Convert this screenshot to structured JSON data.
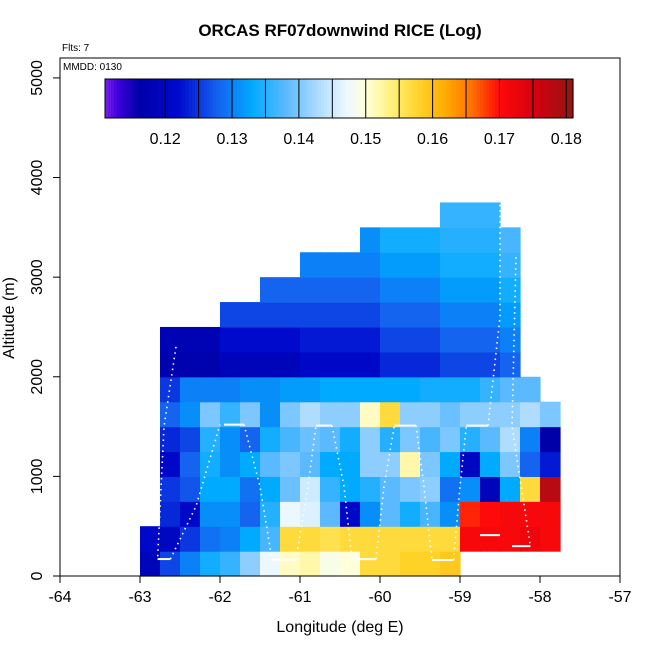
{
  "chart_data": {
    "type": "heatmap",
    "title": "ORCAS RF07downwind RICE (Log)",
    "flights_label": "Flts: 7",
    "date_label": "MMDD: 0130",
    "xlabel": "Longitude (deg E)",
    "ylabel": "Altitude (m)",
    "xlim": [
      -64,
      -57
    ],
    "ylim": [
      0,
      5200
    ],
    "x_ticks": [
      -64,
      -63,
      -62,
      -61,
      -60,
      -59,
      -58,
      -57
    ],
    "x_tick_labels": [
      "-64",
      "-63",
      "-62",
      "-61",
      "-60",
      "-59",
      "-58",
      "-57"
    ],
    "y_ticks": [
      0,
      1000,
      2000,
      3000,
      4000,
      5000
    ],
    "y_tick_labels": [
      "0",
      "1000",
      "2000",
      "3000",
      "4000",
      "5000"
    ],
    "colorbar": {
      "min": 0.111,
      "max": 0.181,
      "ticks": [
        0.12,
        0.13,
        0.14,
        0.15,
        0.16,
        0.17,
        0.18
      ],
      "tick_labels": [
        "0.12",
        "0.13",
        "0.14",
        "0.15",
        "0.16",
        "0.17",
        "0.18"
      ]
    },
    "cell_width_deg": 0.25,
    "cell_height_m": 250,
    "cells": [
      [
        -63.0,
        0,
        0.119
      ],
      [
        -62.75,
        0,
        0.126
      ],
      [
        -62.5,
        0,
        0.13
      ],
      [
        -62.25,
        0,
        0.134
      ],
      [
        -62.0,
        0,
        0.136
      ],
      [
        -61.75,
        0,
        0.141
      ],
      [
        -61.5,
        0,
        0.147
      ],
      [
        -61.25,
        0,
        0.151
      ],
      [
        -61.0,
        0,
        0.152
      ],
      [
        -60.75,
        0,
        0.149
      ],
      [
        -60.5,
        0,
        0.15
      ],
      [
        -60.25,
        0,
        0.157
      ],
      [
        -60.0,
        0,
        0.157
      ],
      [
        -59.75,
        0,
        0.158
      ],
      [
        -59.5,
        0,
        0.158
      ],
      [
        -59.25,
        0,
        0.159
      ],
      [
        -63.0,
        250,
        0.121
      ],
      [
        -62.75,
        250,
        0.12
      ],
      [
        -62.5,
        250,
        0.125
      ],
      [
        -62.25,
        250,
        0.129
      ],
      [
        -62.0,
        250,
        0.13
      ],
      [
        -61.75,
        250,
        0.133
      ],
      [
        -61.5,
        250,
        0.137
      ],
      [
        -61.25,
        250,
        0.157
      ],
      [
        -61.0,
        250,
        0.157
      ],
      [
        -60.75,
        250,
        0.156
      ],
      [
        -60.5,
        250,
        0.157
      ],
      [
        -60.25,
        250,
        0.157
      ],
      [
        -60.0,
        250,
        0.157
      ],
      [
        -59.75,
        250,
        0.157
      ],
      [
        -59.5,
        250,
        0.157
      ],
      [
        -59.25,
        250,
        0.157
      ],
      [
        -59.0,
        250,
        0.171
      ],
      [
        -58.75,
        250,
        0.171
      ],
      [
        -58.5,
        250,
        0.171
      ],
      [
        -58.25,
        250,
        0.172
      ],
      [
        -58.0,
        250,
        0.171
      ],
      [
        -62.75,
        500,
        0.124
      ],
      [
        -62.5,
        500,
        0.121
      ],
      [
        -62.25,
        500,
        0.131
      ],
      [
        -62.0,
        500,
        0.131
      ],
      [
        -61.75,
        500,
        0.128
      ],
      [
        -61.5,
        500,
        0.135
      ],
      [
        -61.25,
        500,
        0.147
      ],
      [
        -61.0,
        500,
        0.146
      ],
      [
        -60.75,
        500,
        0.138
      ],
      [
        -60.5,
        500,
        0.121
      ],
      [
        -60.25,
        500,
        0.131
      ],
      [
        -60.0,
        500,
        0.138
      ],
      [
        -59.75,
        500,
        0.134
      ],
      [
        -59.5,
        500,
        0.137
      ],
      [
        -59.25,
        500,
        0.131
      ],
      [
        -59.0,
        500,
        0.169
      ],
      [
        -58.75,
        500,
        0.17
      ],
      [
        -58.5,
        500,
        0.171
      ],
      [
        -58.25,
        500,
        0.171
      ],
      [
        -58.0,
        500,
        0.171
      ],
      [
        -62.75,
        750,
        0.125
      ],
      [
        -62.5,
        750,
        0.127
      ],
      [
        -62.25,
        750,
        0.133
      ],
      [
        -62.0,
        750,
        0.133
      ],
      [
        -61.75,
        750,
        0.129
      ],
      [
        -61.5,
        750,
        0.133
      ],
      [
        -61.25,
        750,
        0.139
      ],
      [
        -61.0,
        750,
        0.145
      ],
      [
        -60.75,
        750,
        0.136
      ],
      [
        -60.5,
        750,
        0.133
      ],
      [
        -60.25,
        750,
        0.135
      ],
      [
        -60.0,
        750,
        0.138
      ],
      [
        -59.75,
        750,
        0.14
      ],
      [
        -59.5,
        750,
        0.141
      ],
      [
        -59.25,
        750,
        0.129
      ],
      [
        -59.0,
        750,
        0.131
      ],
      [
        -58.75,
        750,
        0.119
      ],
      [
        -58.5,
        750,
        0.133
      ],
      [
        -58.25,
        750,
        0.157
      ],
      [
        -58.0,
        750,
        0.178
      ],
      [
        -62.75,
        1000,
        0.121
      ],
      [
        -62.5,
        1000,
        0.128
      ],
      [
        -62.25,
        1000,
        0.134
      ],
      [
        -62.0,
        1000,
        0.131
      ],
      [
        -61.75,
        1000,
        0.133
      ],
      [
        -61.5,
        1000,
        0.138
      ],
      [
        -61.25,
        1000,
        0.14
      ],
      [
        -61.0,
        1000,
        0.138
      ],
      [
        -60.75,
        1000,
        0.133
      ],
      [
        -60.5,
        1000,
        0.133
      ],
      [
        -60.25,
        1000,
        0.141
      ],
      [
        -60.0,
        1000,
        0.141
      ],
      [
        -59.75,
        1000,
        0.152
      ],
      [
        -59.5,
        1000,
        0.14
      ],
      [
        -59.25,
        1000,
        0.133
      ],
      [
        -59.0,
        1000,
        0.12
      ],
      [
        -58.75,
        1000,
        0.133
      ],
      [
        -58.5,
        1000,
        0.14
      ],
      [
        -58.25,
        1000,
        0.128
      ],
      [
        -58.0,
        1000,
        0.123
      ],
      [
        -62.75,
        1250,
        0.124
      ],
      [
        -62.5,
        1250,
        0.126
      ],
      [
        -62.25,
        1250,
        0.135
      ],
      [
        -62.0,
        1250,
        0.131
      ],
      [
        -61.75,
        1250,
        0.128
      ],
      [
        -61.5,
        1250,
        0.134
      ],
      [
        -61.25,
        1250,
        0.137
      ],
      [
        -61.0,
        1250,
        0.139
      ],
      [
        -60.75,
        1250,
        0.138
      ],
      [
        -60.5,
        1250,
        0.134
      ],
      [
        -60.25,
        1250,
        0.141
      ],
      [
        -60.0,
        1250,
        0.135
      ],
      [
        -59.75,
        1250,
        0.14
      ],
      [
        -59.5,
        1250,
        0.137
      ],
      [
        -59.25,
        1250,
        0.14
      ],
      [
        -59.0,
        1250,
        0.135
      ],
      [
        -58.75,
        1250,
        0.138
      ],
      [
        -58.5,
        1250,
        0.143
      ],
      [
        -58.25,
        1250,
        0.13
      ],
      [
        -58.0,
        1250,
        0.116
      ],
      [
        -62.75,
        1500,
        0.128
      ],
      [
        -62.5,
        1500,
        0.131
      ],
      [
        -62.25,
        1500,
        0.14
      ],
      [
        -62.0,
        1500,
        0.136
      ],
      [
        -61.75,
        1500,
        0.14
      ],
      [
        -61.5,
        1500,
        0.131
      ],
      [
        -61.25,
        1500,
        0.14
      ],
      [
        -61.0,
        1500,
        0.143
      ],
      [
        -60.75,
        1500,
        0.141
      ],
      [
        -60.5,
        1500,
        0.141
      ],
      [
        -60.25,
        1500,
        0.151
      ],
      [
        -60.0,
        1500,
        0.157
      ],
      [
        -59.75,
        1500,
        0.141
      ],
      [
        -59.5,
        1500,
        0.141
      ],
      [
        -59.25,
        1500,
        0.139
      ],
      [
        -59.0,
        1500,
        0.141
      ],
      [
        -58.75,
        1500,
        0.141
      ],
      [
        -58.5,
        1500,
        0.141
      ],
      [
        -58.25,
        1500,
        0.143
      ],
      [
        -58.0,
        1500,
        0.14
      ],
      [
        -62.75,
        1750,
        0.125
      ],
      [
        -62.5,
        1750,
        0.13
      ],
      [
        -62.25,
        1750,
        0.13
      ],
      [
        -62.0,
        1750,
        0.13
      ],
      [
        -61.75,
        1750,
        0.131
      ],
      [
        -61.5,
        1750,
        0.131
      ],
      [
        -61.25,
        1750,
        0.132
      ],
      [
        -61.0,
        1750,
        0.132
      ],
      [
        -60.75,
        1750,
        0.133
      ],
      [
        -60.5,
        1750,
        0.133
      ],
      [
        -60.25,
        1750,
        0.133
      ],
      [
        -60.0,
        1750,
        0.133
      ],
      [
        -59.75,
        1750,
        0.133
      ],
      [
        -59.5,
        1750,
        0.134
      ],
      [
        -59.25,
        1750,
        0.134
      ],
      [
        -59.0,
        1750,
        0.134
      ],
      [
        -58.75,
        1750,
        0.136
      ],
      [
        -58.5,
        1750,
        0.138
      ],
      [
        -58.25,
        1750,
        0.138
      ]
    ],
    "upper_cells": [
      {
        "x0": -62.75,
        "x1": -62.5,
        "y1": 2500,
        "pattern": "a"
      },
      {
        "x0": -62.5,
        "x1": -62.25,
        "y1": 2500,
        "pattern": "a"
      },
      {
        "x0": -62.25,
        "x1": -62.0,
        "y1": 2500,
        "pattern": "a"
      },
      {
        "x0": -62.0,
        "x1": -61.75,
        "y1": 2750,
        "pattern": "b"
      },
      {
        "x0": -61.75,
        "x1": -61.5,
        "y1": 2750,
        "pattern": "b"
      },
      {
        "x0": -61.5,
        "x1": -61.25,
        "y1": 3000,
        "pattern": "b"
      },
      {
        "x0": -61.25,
        "x1": -61.0,
        "y1": 3000,
        "pattern": "b"
      },
      {
        "x0": -61.0,
        "x1": -60.75,
        "y1": 3250,
        "pattern": "c"
      },
      {
        "x0": -60.75,
        "x1": -60.5,
        "y1": 3250,
        "pattern": "c"
      },
      {
        "x0": -60.5,
        "x1": -60.25,
        "y1": 3250,
        "pattern": "c"
      },
      {
        "x0": -60.25,
        "x1": -60.0,
        "y1": 3500,
        "pattern": "c"
      },
      {
        "x0": -60.0,
        "x1": -59.75,
        "y1": 3500,
        "pattern": "d"
      },
      {
        "x0": -59.75,
        "x1": -59.5,
        "y1": 3500,
        "pattern": "d"
      },
      {
        "x0": -59.5,
        "x1": -59.25,
        "y1": 3500,
        "pattern": "d"
      },
      {
        "x0": -59.25,
        "x1": -59.0,
        "y1": 3750,
        "pattern": "e"
      },
      {
        "x0": -59.0,
        "x1": -58.75,
        "y1": 3750,
        "pattern": "e"
      },
      {
        "x0": -58.75,
        "x1": -58.5,
        "y1": 3750,
        "pattern": "e"
      },
      {
        "x0": -58.5,
        "x1": -58.25,
        "y1": 3500,
        "pattern": "f"
      }
    ],
    "upper_patterns": {
      "a": [
        0.117,
        0.118,
        0.12,
        0.121
      ],
      "b": [
        0.119,
        0.122,
        0.126,
        0.128,
        0.129,
        0.13,
        0.131,
        0.132,
        0.132
      ],
      "c": [
        0.121,
        0.123,
        0.126,
        0.128,
        0.13,
        0.131,
        0.132,
        0.133,
        0.134,
        0.134
      ],
      "d": [
        0.124,
        0.126,
        0.128,
        0.13,
        0.132,
        0.134,
        0.135,
        0.136,
        0.137,
        0.138,
        0.139,
        0.14
      ],
      "e": [
        0.126,
        0.128,
        0.13,
        0.132,
        0.134,
        0.135,
        0.136,
        0.137,
        0.138,
        0.139,
        0.14,
        0.141
      ],
      "f": [
        0.128,
        0.13,
        0.132,
        0.134,
        0.136,
        0.137,
        0.138,
        0.139,
        0.14,
        0.141,
        0.143,
        0.145
      ]
    },
    "flight_track_horizontal": [
      [
        -62.78,
        -62.62,
        170
      ],
      [
        -61.95,
        -61.7,
        1520
      ],
      [
        -61.35,
        -61.05,
        165
      ],
      [
        -60.8,
        -60.6,
        1510
      ],
      [
        -60.35,
        -60.05,
        170
      ],
      [
        -59.82,
        -59.55,
        1510
      ],
      [
        -59.35,
        -59.08,
        160
      ],
      [
        -58.92,
        -58.65,
        1510
      ],
      [
        -58.35,
        -58.12,
        300
      ],
      [
        -58.75,
        -58.5,
        410
      ]
    ],
    "flight_track_dotted": [
      [
        [
          -62.55,
          2300
        ],
        [
          -62.7,
          1500
        ],
        [
          -62.78,
          170
        ]
      ],
      [
        [
          -62.62,
          170
        ],
        [
          -62.3,
          700
        ],
        [
          -62.0,
          1520
        ]
      ],
      [
        [
          -61.7,
          1520
        ],
        [
          -61.5,
          900
        ],
        [
          -61.35,
          165
        ]
      ],
      [
        [
          -61.05,
          165
        ],
        [
          -60.9,
          900
        ],
        [
          -60.8,
          1510
        ]
      ],
      [
        [
          -60.6,
          1510
        ],
        [
          -60.45,
          900
        ],
        [
          -60.35,
          170
        ]
      ],
      [
        [
          -60.05,
          170
        ],
        [
          -59.95,
          900
        ],
        [
          -59.82,
          1510
        ]
      ],
      [
        [
          -59.55,
          1510
        ],
        [
          -59.45,
          900
        ],
        [
          -59.35,
          160
        ]
      ],
      [
        [
          -59.08,
          160
        ],
        [
          -59.0,
          900
        ],
        [
          -58.92,
          1510
        ]
      ],
      [
        [
          -58.65,
          1510
        ],
        [
          -58.5,
          2600
        ],
        [
          -58.5,
          3950
        ]
      ],
      [
        [
          -58.3,
          3200
        ],
        [
          -58.35,
          1500
        ],
        [
          -58.12,
          300
        ]
      ]
    ]
  }
}
